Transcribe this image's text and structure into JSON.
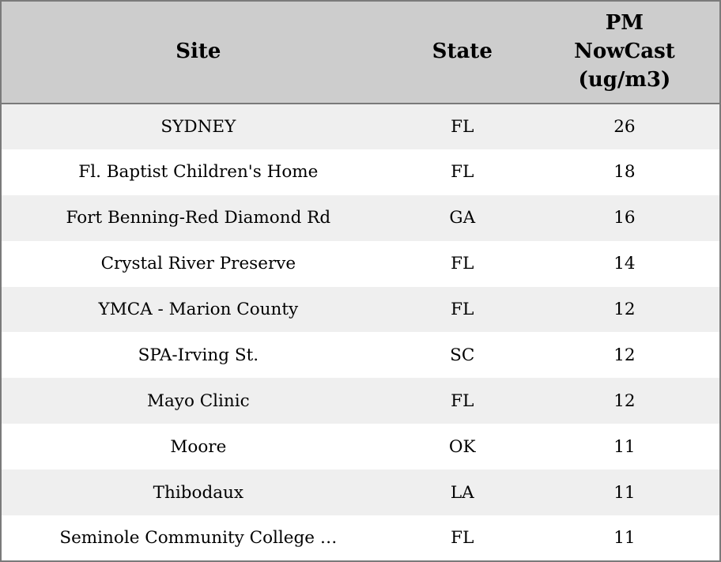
{
  "colors": {
    "header_bg": "#cdcdcd",
    "stripe_row_bg": "#efefef",
    "plain_row_bg": "#ffffff",
    "border": "#7a7a7a",
    "text": "#000000"
  },
  "table": {
    "columns": [
      {
        "key": "site",
        "label": "Site"
      },
      {
        "key": "state",
        "label": "State"
      },
      {
        "key": "value",
        "label": "PM\nNowCast\n(ug/m3)"
      }
    ],
    "rows": [
      {
        "site": "SYDNEY",
        "state": "FL",
        "value": "26"
      },
      {
        "site": "Fl. Baptist Children's Home",
        "state": "FL",
        "value": "18"
      },
      {
        "site": "Fort Benning-Red Diamond Rd",
        "state": "GA",
        "value": "16"
      },
      {
        "site": "Crystal River Preserve",
        "state": "FL",
        "value": "14"
      },
      {
        "site": "YMCA - Marion County",
        "state": "FL",
        "value": "12"
      },
      {
        "site": "SPA-Irving St.",
        "state": "SC",
        "value": "12"
      },
      {
        "site": "Mayo Clinic",
        "state": "FL",
        "value": "12"
      },
      {
        "site": "Moore",
        "state": "OK",
        "value": "11"
      },
      {
        "site": "Thibodaux",
        "state": "LA",
        "value": "11"
      },
      {
        "site": "Seminole Community College …",
        "state": "FL",
        "value": "11"
      }
    ]
  }
}
